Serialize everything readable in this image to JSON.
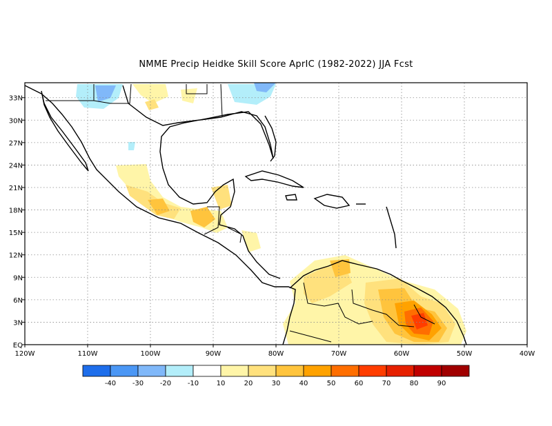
{
  "title": "NMME Precip Heidke Skill Score AprIC (1982-2022) JJA Fcst",
  "map": {
    "lon_range": [
      -120,
      -40
    ],
    "lat_range": [
      0,
      35
    ],
    "lon_ticks": [
      {
        "value": -120,
        "label": "120W"
      },
      {
        "value": -110,
        "label": "110W"
      },
      {
        "value": -100,
        "label": "100W"
      },
      {
        "value": -90,
        "label": "90W"
      },
      {
        "value": -80,
        "label": "80W"
      },
      {
        "value": -70,
        "label": "70W"
      },
      {
        "value": -60,
        "label": "60W"
      },
      {
        "value": -50,
        "label": "50W"
      },
      {
        "value": -40,
        "label": "40W"
      }
    ],
    "lat_ticks": [
      {
        "value": 0,
        "label": "EQ"
      },
      {
        "value": 3,
        "label": "3N"
      },
      {
        "value": 6,
        "label": "6N"
      },
      {
        "value": 9,
        "label": "9N"
      },
      {
        "value": 12,
        "label": "12N"
      },
      {
        "value": 15,
        "label": "15N"
      },
      {
        "value": 18,
        "label": "18N"
      },
      {
        "value": 21,
        "label": "21N"
      },
      {
        "value": 24,
        "label": "24N"
      },
      {
        "value": 27,
        "label": "27N"
      },
      {
        "value": 30,
        "label": "30N"
      },
      {
        "value": 33,
        "label": "33N"
      }
    ],
    "grid": true
  },
  "colorbar": {
    "colors": [
      "#1e6eeb",
      "#4b97f5",
      "#80b8f9",
      "#b3eefa",
      "#ffffff",
      "#fff5a8",
      "#ffe17d",
      "#ffc43d",
      "#ffa200",
      "#ff6e00",
      "#ff3d00",
      "#e62000",
      "#c00000",
      "#a00000"
    ],
    "labels": [
      "-40",
      "-30",
      "-20",
      "-10",
      "10",
      "20",
      "30",
      "40",
      "50",
      "60",
      "70",
      "80",
      "90"
    ]
  }
}
